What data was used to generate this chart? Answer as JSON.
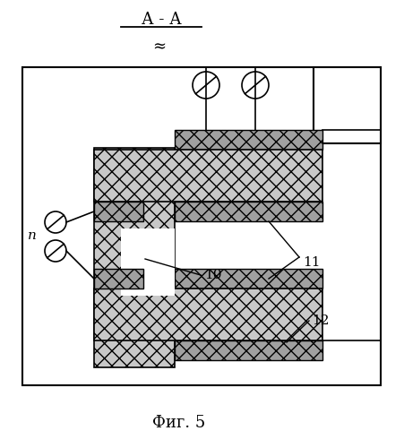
{
  "title": "А - А",
  "fig_label": "Фиг. 5",
  "label_n": "n",
  "label_10": "10",
  "label_11": "11",
  "label_12": "12",
  "approx_symbol": "≈",
  "bg_color": "#ffffff"
}
